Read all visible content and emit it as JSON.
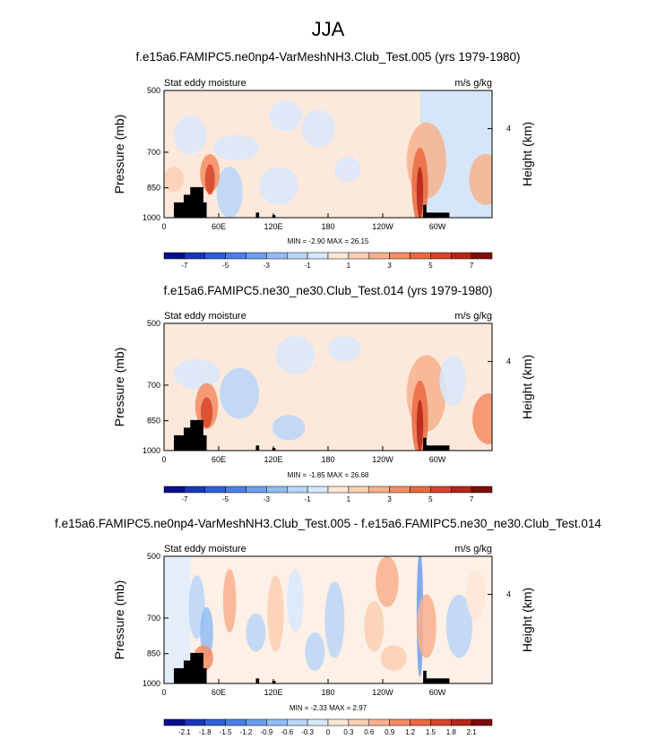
{
  "figure": {
    "title": "JJA"
  },
  "chart_data": [
    {
      "type": "heatmap",
      "title": "f.e15a6.FAMIPC5.ne0np4-VarMeshNH3.Club_Test.005 (yrs 1979-1980)",
      "left_label": "Stat eddy moisture",
      "units": "m/s g/kg",
      "xlabel": "",
      "ylabel": "Pressure (mb)",
      "y2label": "Height (km)",
      "x_ticks": [
        "0",
        "60E",
        "120E",
        "180",
        "120W",
        "60W"
      ],
      "x_tick_values": [
        0,
        60,
        120,
        180,
        240,
        300
      ],
      "xlim": [
        0,
        360
      ],
      "y_ticks": [
        "500",
        "700",
        "850",
        "1000"
      ],
      "y_tick_values": [
        500,
        700,
        850,
        1000
      ],
      "ylim": [
        500,
        1000
      ],
      "y2_ticks": [
        "4"
      ],
      "y2_tick_values": [
        4
      ],
      "stats": "MIN =  -2.90   MAX =  26.15",
      "min": -2.9,
      "max": 26.15,
      "colorbar_labels": [
        "-7",
        "-5",
        "-3",
        "-1",
        "1",
        "3",
        "5",
        "7"
      ],
      "colorbar_colors": [
        "#0a0f8c",
        "#1a37b8",
        "#2e5fd8",
        "#4a80e8",
        "#6c9ef0",
        "#92bcf5",
        "#b8d5f8",
        "#d8e8fb",
        "#fde6d6",
        "#fbcfb2",
        "#f7b08c",
        "#f38c62",
        "#ea6a40",
        "#d6452a",
        "#b52518",
        "#7e0d0a"
      ]
    },
    {
      "type": "heatmap",
      "title": "f.e15a6.FAMIPC5.ne30_ne30.Club_Test.014 (yrs 1979-1980)",
      "left_label": "Stat eddy moisture",
      "units": "m/s g/kg",
      "xlabel": "",
      "ylabel": "Pressure (mb)",
      "y2label": "Height (km)",
      "x_ticks": [
        "0",
        "60E",
        "120E",
        "180",
        "120W",
        "60W"
      ],
      "x_tick_values": [
        0,
        60,
        120,
        180,
        240,
        300
      ],
      "xlim": [
        0,
        360
      ],
      "y_ticks": [
        "500",
        "700",
        "850",
        "1000"
      ],
      "y_tick_values": [
        500,
        700,
        850,
        1000
      ],
      "ylim": [
        500,
        1000
      ],
      "y2_ticks": [
        "4"
      ],
      "y2_tick_values": [
        4
      ],
      "stats": "MIN =  -1.85   MAX =  26.68",
      "min": -1.85,
      "max": 26.68,
      "colorbar_labels": [
        "-7",
        "-5",
        "-3",
        "-1",
        "1",
        "3",
        "5",
        "7"
      ],
      "colorbar_colors": [
        "#0a0f8c",
        "#1a37b8",
        "#2e5fd8",
        "#4a80e8",
        "#6c9ef0",
        "#92bcf5",
        "#b8d5f8",
        "#d8e8fb",
        "#fde6d6",
        "#fbcfb2",
        "#f7b08c",
        "#f38c62",
        "#ea6a40",
        "#d6452a",
        "#b52518",
        "#7e0d0a"
      ]
    },
    {
      "type": "heatmap",
      "title": "f.e15a6.FAMIPC5.ne0np4-VarMeshNH3.Club_Test.005 - f.e15a6.FAMIPC5.ne30_ne30.Club_Test.014",
      "left_label": "Stat eddy moisture",
      "units": "m/s g/kg",
      "xlabel": "",
      "ylabel": "Pressure (mb)",
      "y2label": "Height (km)",
      "x_ticks": [
        "0",
        "60E",
        "120E",
        "180",
        "120W",
        "60W"
      ],
      "x_tick_values": [
        0,
        60,
        120,
        180,
        240,
        300
      ],
      "xlim": [
        0,
        360
      ],
      "y_ticks": [
        "500",
        "700",
        "850",
        "1000"
      ],
      "y_tick_values": [
        500,
        700,
        850,
        1000
      ],
      "ylim": [
        500,
        1000
      ],
      "y2_ticks": [
        "4"
      ],
      "y2_tick_values": [
        4
      ],
      "stats": "MIN =  -2.33   MAX =  2.97",
      "min": -2.33,
      "max": 2.97,
      "colorbar_labels": [
        "-2.1",
        "-1.8",
        "-1.5",
        "-1.2",
        "-0.9",
        "-0.6",
        "-0.3",
        "0",
        "0.3",
        "0.6",
        "0.9",
        "1.2",
        "1.5",
        "1.8",
        "2.1"
      ],
      "colorbar_colors": [
        "#0a0f8c",
        "#1a37b8",
        "#2e5fd8",
        "#4a80e8",
        "#6c9ef0",
        "#92bcf5",
        "#b8d5f8",
        "#d8e8fb",
        "#fde6d6",
        "#fbcfb2",
        "#f7b08c",
        "#f38c62",
        "#ea6a40",
        "#d6452a",
        "#b52518",
        "#7e0d0a"
      ]
    }
  ]
}
